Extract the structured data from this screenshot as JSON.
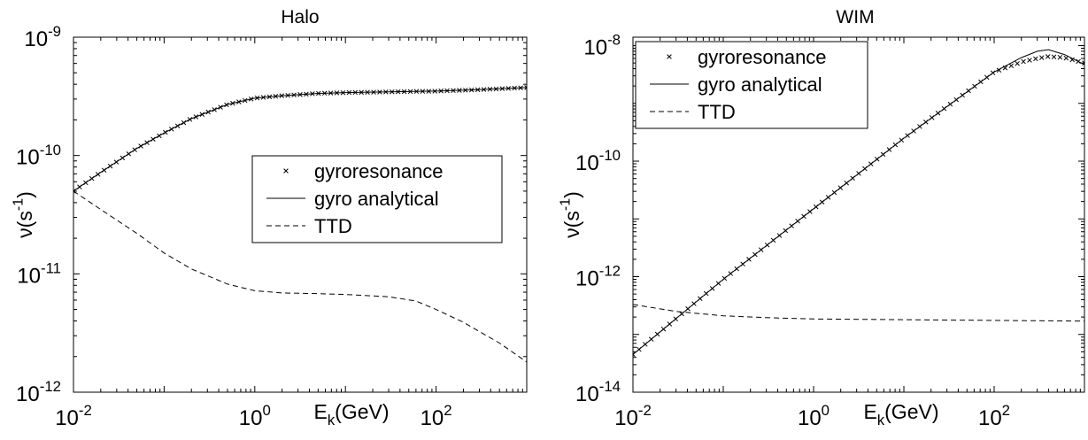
{
  "chart_data": [
    {
      "type": "line",
      "title": "Halo",
      "xlabel": "E_k(GeV)",
      "ylabel": "ν(s^-1)",
      "xscale": "log",
      "yscale": "log",
      "xlim": [
        0.01,
        1000
      ],
      "ylim": [
        1e-12,
        1e-09
      ],
      "x_ticks": [
        0.01,
        1,
        100
      ],
      "x_tick_labels": [
        "10^-2",
        "10^0",
        "10^2"
      ],
      "y_ticks": [
        1e-12,
        1e-11,
        1e-10,
        1e-09
      ],
      "y_tick_labels": [
        "10^-12",
        "10^-11",
        "10^-10",
        "10^-9"
      ],
      "grid": false,
      "legend_position": "center-right",
      "series": [
        {
          "name": "gyroresonance",
          "style": "markers-x",
          "x": [
            0.01,
            0.02,
            0.05,
            0.1,
            0.2,
            0.5,
            1,
            2,
            5,
            10,
            30,
            100,
            300,
            1000
          ],
          "y": [
            5e-11,
            7.2e-11,
            1.15e-10,
            1.55e-10,
            2.05e-10,
            2.7e-10,
            3.05e-10,
            3.2e-10,
            3.35e-10,
            3.4e-10,
            3.45e-10,
            3.5e-10,
            3.6e-10,
            3.75e-10
          ]
        },
        {
          "name": "gyro analytical",
          "style": "solid",
          "x": [
            0.01,
            0.02,
            0.05,
            0.1,
            0.2,
            0.5,
            1,
            2,
            5,
            10,
            30,
            100,
            300,
            1000
          ],
          "y": [
            5e-11,
            7.2e-11,
            1.15e-10,
            1.55e-10,
            2.05e-10,
            2.7e-10,
            3.05e-10,
            3.2e-10,
            3.35e-10,
            3.4e-10,
            3.45e-10,
            3.5e-10,
            3.6e-10,
            3.75e-10
          ]
        },
        {
          "name": "TTD",
          "style": "dashed",
          "x": [
            0.01,
            0.02,
            0.05,
            0.1,
            0.2,
            0.5,
            1,
            2,
            5,
            10,
            30,
            60,
            100,
            200,
            500,
            1000
          ],
          "y": [
            5e-11,
            3.5e-11,
            2.2e-11,
            1.5e-11,
            1.1e-11,
            8.2e-12,
            7.2e-12,
            6.9e-12,
            6.8e-12,
            6.7e-12,
            6.4e-12,
            5.9e-12,
            5e-12,
            3.9e-12,
            2.6e-12,
            1.8e-12
          ]
        }
      ]
    },
    {
      "type": "line",
      "title": "WIM",
      "xlabel": "E_k(GeV)",
      "ylabel": "ν(s^-1)",
      "xscale": "log",
      "yscale": "log",
      "xlim": [
        0.01,
        1000
      ],
      "ylim": [
        1e-14,
        1.4e-08
      ],
      "x_ticks": [
        0.01,
        1,
        100
      ],
      "x_tick_labels": [
        "10^-2",
        "10^0",
        "10^2"
      ],
      "y_ticks": [
        1e-14,
        1e-12,
        1e-10,
        1e-08
      ],
      "y_tick_labels": [
        "10^-14",
        "10^-12",
        "10^-10",
        "10^-8"
      ],
      "grid": false,
      "legend_position": "top-left",
      "series": [
        {
          "name": "gyroresonance",
          "style": "markers-x",
          "x": [
            0.01,
            0.1,
            1,
            10,
            100,
            200,
            300,
            400,
            600,
            1000
          ],
          "y": [
            4.5e-14,
            9e-13,
            1.5e-11,
            2.5e-10,
            3.5e-09,
            5.2e-09,
            6e-09,
            6.5e-09,
            6.2e-09,
            5e-09
          ]
        },
        {
          "name": "gyro analytical",
          "style": "solid",
          "x": [
            0.01,
            0.1,
            1,
            10,
            100,
            200,
            300,
            400,
            600,
            1000
          ],
          "y": [
            4.5e-14,
            9e-13,
            1.5e-11,
            2.5e-10,
            3.5e-09,
            6.2e-09,
            8e-09,
            8.5e-09,
            7e-09,
            4.7e-09
          ]
        },
        {
          "name": "TTD",
          "style": "dashed",
          "x": [
            0.01,
            0.03,
            0.1,
            0.3,
            1,
            10,
            100,
            1000
          ],
          "y": [
            3.3e-13,
            2.5e-13,
            2.1e-13,
            1.95e-13,
            1.85e-13,
            1.8e-13,
            1.75e-13,
            1.7e-13
          ]
        }
      ]
    }
  ]
}
